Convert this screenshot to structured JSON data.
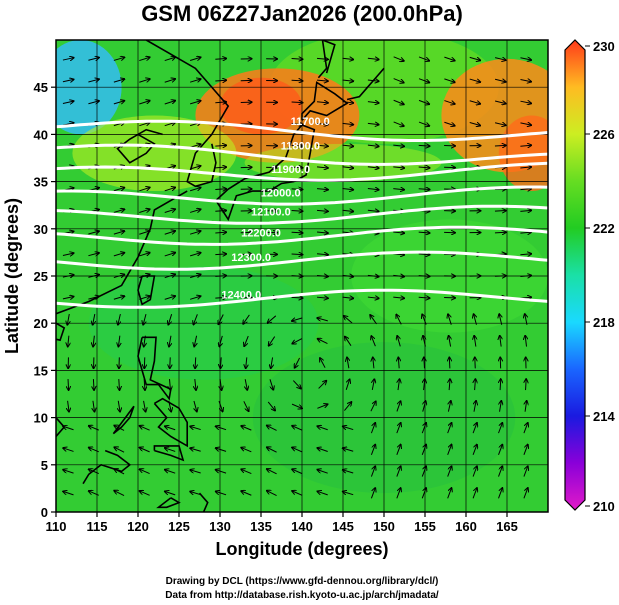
{
  "chart_data": {
    "type": "heatmap",
    "title": "GSM 06Z27Jan2026 (200.0hPa)",
    "xlabel": "Longitude (degrees)",
    "ylabel": "Latitude  (degrees)",
    "xlim": [
      110,
      170
    ],
    "ylim": [
      0,
      50
    ],
    "x_ticks": [
      110,
      115,
      120,
      125,
      130,
      135,
      140,
      145,
      150,
      155,
      160,
      165
    ],
    "y_ticks": [
      0,
      5,
      10,
      15,
      20,
      25,
      30,
      35,
      40,
      45
    ],
    "grid": true,
    "colorbar": {
      "min": 210,
      "max": 230,
      "ticks": [
        210,
        214,
        218,
        222,
        226,
        230
      ]
    },
    "contour_levels": [
      {
        "label": "11700.0",
        "lat": 40.8
      },
      {
        "label": "11800.0",
        "lat": 38.2
      },
      {
        "label": "11900.0",
        "lat": 35.7
      },
      {
        "label": "12000.0",
        "lat": 33.2
      },
      {
        "label": "12100.0",
        "lat": 31.2
      },
      {
        "label": "12200.0",
        "lat": 29.0
      },
      {
        "label": "12300.0",
        "lat": 26.4
      },
      {
        "label": "12400.0",
        "lat": 22.4
      }
    ],
    "colors": {
      "field_dominant": "#33cc33",
      "warm_region": "#ff7a1a",
      "cool_region": "#33ccff",
      "contours": "#ffffff",
      "vectors": "#000000",
      "coast": "#000000"
    }
  },
  "footer": {
    "line1": "Drawing by DCL (https://www.gfd-dennou.org/library/dcl/)",
    "line2": "Data from http://database.rish.kyoto-u.ac.jp/arch/jmadata/"
  }
}
